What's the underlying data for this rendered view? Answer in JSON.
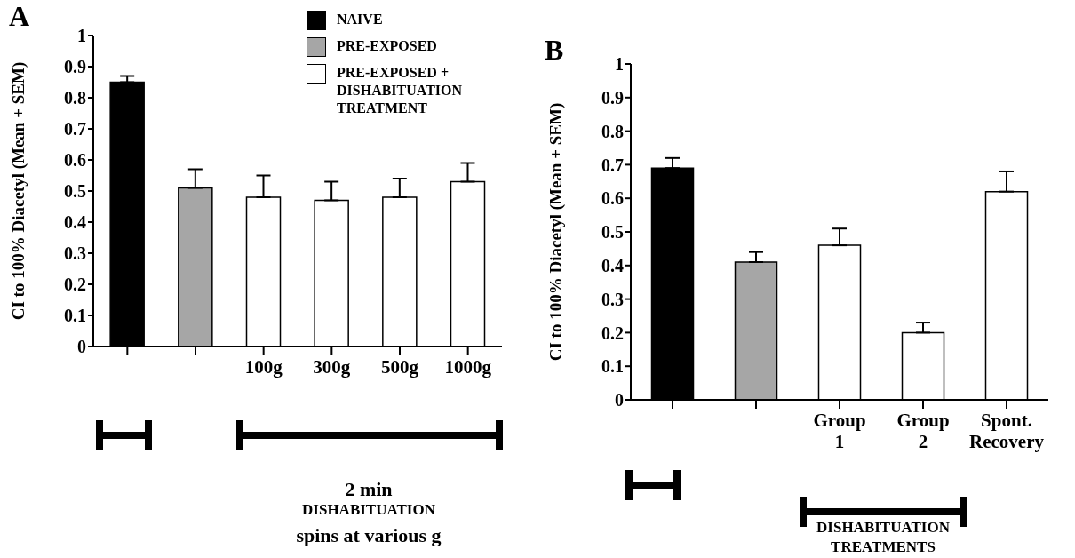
{
  "chart_data": [
    {
      "type": "bar",
      "title": "A",
      "ylabel": "CI to 100% Diacetyl (Mean + SEM)",
      "categories": [
        null,
        null,
        "100g",
        "300g",
        "500g",
        "1000g"
      ],
      "series": [
        {
          "name": "NAIVE",
          "color": "#000000",
          "values": [
            0.85,
            null,
            null,
            null,
            null,
            null
          ],
          "errors": [
            0.02,
            null,
            null,
            null,
            null,
            null
          ]
        },
        {
          "name": "PRE-EXPOSED",
          "color": "#a6a6a6",
          "values": [
            null,
            0.51,
            null,
            null,
            null,
            null
          ],
          "errors": [
            null,
            0.06,
            null,
            null,
            null,
            null
          ]
        },
        {
          "name": "PRE-EXPOSED + DISHABITUATION TREATMENT",
          "color": "#ffffff",
          "values": [
            null,
            null,
            0.48,
            0.47,
            0.48,
            0.53
          ],
          "errors": [
            null,
            null,
            0.07,
            0.06,
            0.06,
            0.06
          ]
        }
      ],
      "ylim": [
        0,
        1
      ],
      "yticks": [
        0,
        0.1,
        0.2,
        0.3,
        0.4,
        0.5,
        0.6,
        0.7,
        0.8,
        0.9,
        1
      ],
      "grid": false,
      "legend": "top right",
      "annotations": [
        "2 min",
        "DISHABITUATION",
        "spins at various g"
      ]
    },
    {
      "type": "bar",
      "title": "B",
      "ylabel": "CI to 100% Diacetyl (Mean + SEM)",
      "categories": [
        null,
        null,
        "Group 1",
        "Group 2",
        "Spont. Recovery"
      ],
      "series": [
        {
          "color": "#000000",
          "values": [
            0.69,
            null,
            null,
            null,
            null
          ],
          "errors": [
            0.03,
            null,
            null,
            null,
            null
          ]
        },
        {
          "color": "#a6a6a6",
          "values": [
            null,
            0.41,
            null,
            null,
            null
          ],
          "errors": [
            null,
            0.03,
            null,
            null,
            null
          ]
        },
        {
          "color": "#ffffff",
          "values": [
            null,
            null,
            0.46,
            0.2,
            null
          ],
          "errors": [
            null,
            null,
            0.05,
            0.03,
            null
          ]
        },
        {
          "color": "#ffffff",
          "values": [
            null,
            null,
            null,
            null,
            0.62
          ],
          "errors": [
            null,
            null,
            null,
            null,
            0.06
          ]
        }
      ],
      "ylim": [
        0,
        1
      ],
      "yticks": [
        0,
        0.1,
        0.2,
        0.3,
        0.4,
        0.5,
        0.6,
        0.7,
        0.8,
        0.9,
        1
      ],
      "grid": false,
      "legend": false,
      "annotations": [
        "DISHABITUATION",
        "TREATMENTS"
      ]
    }
  ]
}
